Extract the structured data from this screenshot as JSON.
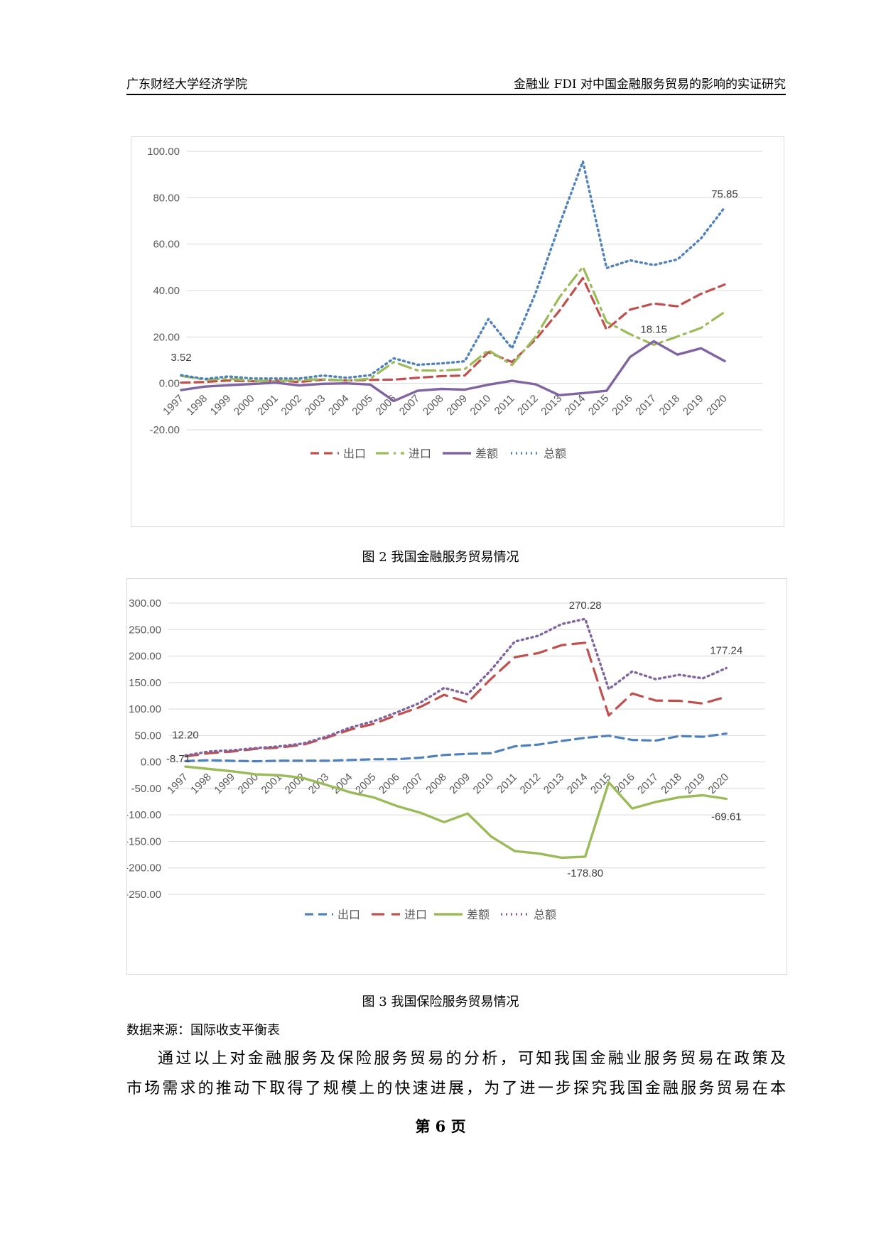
{
  "header": {
    "left": "广东财经大学经济学院",
    "right": "金融业 FDI 对中国金融服务贸易的影响的实证研究"
  },
  "figure2": {
    "caption": "图 2 我国金融服务贸易情况"
  },
  "figure3": {
    "caption": "图 3 我国保险服务贸易情况"
  },
  "source": "数据来源：国际收支平衡表",
  "paragraph": {
    "line1": "通过以上对金融服务及保险服务贸易的分析，可知我国金融业服务贸易在政策及",
    "line2": "市场需求的推动下取得了规模上的快速进展，为了进一步探究我国金融服务贸易在本"
  },
  "page_number": "第 6 页",
  "chart_data": [
    {
      "type": "line",
      "title": "",
      "categories": [
        "1997",
        "1998",
        "1999",
        "2000",
        "2001",
        "2002",
        "2003",
        "2004",
        "2005",
        "2006",
        "2007",
        "2008",
        "2009",
        "2010",
        "2011",
        "2012",
        "2013",
        "2014",
        "2015",
        "2016",
        "2017",
        "2018",
        "2019",
        "2020"
      ],
      "yticks": [
        "100.00",
        "80.00",
        "60.00",
        "40.00",
        "20.00",
        "0.00",
        "-20.00"
      ],
      "ylim": [
        -20,
        100
      ],
      "series": [
        {
          "name": "出口",
          "color": "#c0504d",
          "dash": "12,7",
          "width": 3.2,
          "values": [
            0.3,
            0.6,
            1.2,
            0.9,
            1.2,
            0.6,
            1.6,
            1.2,
            1.5,
            1.6,
            2.4,
            3.1,
            3.4,
            13.4,
            9.2,
            18.9,
            31.2,
            45.4,
            23.2,
            31.8,
            34.4,
            33.2,
            38.6,
            42.6
          ]
        },
        {
          "name": "进口",
          "color": "#9bbb59",
          "dash": "18,7,3,7",
          "width": 3.2,
          "values": [
            3.2,
            1.6,
            2.0,
            1.2,
            0.9,
            1.5,
            1.8,
            1.2,
            2.0,
            9.2,
            5.6,
            5.5,
            6.1,
            14.3,
            7.9,
            20.1,
            37.0,
            50.2,
            26.5,
            21.2,
            16.6,
            20.2,
            23.9,
            30.8
          ]
        },
        {
          "name": "差额",
          "color": "#8064a2",
          "dash": "",
          "width": 3.4,
          "values": [
            -2.9,
            -1.4,
            -0.8,
            -0.3,
            0.3,
            -0.9,
            -0.2,
            0.0,
            -0.5,
            -7.6,
            -3.2,
            -2.4,
            -2.7,
            -0.6,
            1.1,
            -0.4,
            -5.1,
            -4.2,
            -3.2,
            11.4,
            18.15,
            12.4,
            15.1,
            9.6
          ]
        },
        {
          "name": "总额",
          "color": "#4f81bd",
          "dash": "2,5",
          "width": 3.4,
          "values": [
            3.52,
            1.9,
            3.0,
            2.1,
            2.1,
            2.1,
            3.4,
            2.4,
            3.5,
            10.8,
            8.0,
            8.6,
            9.5,
            27.7,
            15.1,
            39.0,
            68.2,
            95.6,
            49.7,
            53.0,
            51.0,
            53.4,
            62.5,
            75.85
          ]
        }
      ],
      "labels": [
        {
          "series": 3,
          "index": 0,
          "text": "3.52"
        },
        {
          "series": 2,
          "index": 20,
          "text": "18.15"
        },
        {
          "series": 3,
          "index": 23,
          "text": "75.85"
        }
      ]
    },
    {
      "type": "line",
      "title": "",
      "categories": [
        "1997",
        "1998",
        "1999",
        "2000",
        "2001",
        "2002",
        "2003",
        "2004",
        "2005",
        "2006",
        "2007",
        "2008",
        "2009",
        "2010",
        "2011",
        "2012",
        "2013",
        "2014",
        "2015",
        "2016",
        "2017",
        "2018",
        "2019",
        "2020"
      ],
      "yticks": [
        "300.00",
        "250.00",
        "200.00",
        "150.00",
        "100.00",
        "50.00",
        "0.00",
        "-50.00",
        "-100.00",
        "-150.00",
        "-200.00",
        "-250.00"
      ],
      "ylim": [
        -250,
        300
      ],
      "series": [
        {
          "name": "出口",
          "color": "#4f81bd",
          "dash": "12,7",
          "width": 3.2,
          "values": [
            1.8,
            3.3,
            2.2,
            1.4,
            2.3,
            2.3,
            2.3,
            3.8,
            5.1,
            5.3,
            8.1,
            13.2,
            15.3,
            16.5,
            29.5,
            32.8,
            39.8,
            45.7,
            49.6,
            41.6,
            40.4,
            49.0,
            47.6,
            53.6
          ]
        },
        {
          "name": "进口",
          "color": "#c0504d",
          "dash": "18,10",
          "width": 3.2,
          "values": [
            10.5,
            16.5,
            19.8,
            24.8,
            27.3,
            32.5,
            45.7,
            61.0,
            72.0,
            88.6,
            104.1,
            126.8,
            112.6,
            157.3,
            197.8,
            205.5,
            220.6,
            225.1,
            87.9,
            129.4,
            115.9,
            115.6,
            110.4,
            123.2
          ]
        },
        {
          "name": "差额",
          "color": "#9bbb59",
          "dash": "",
          "width": 3.4,
          "values": [
            -8.71,
            -13.2,
            -17.6,
            -23.4,
            -25.0,
            -30.2,
            -43.4,
            -57.2,
            -66.9,
            -83.3,
            -96.0,
            -113.6,
            -97.3,
            -140.8,
            -168.3,
            -172.7,
            -180.8,
            -178.8,
            -38.3,
            -87.8,
            -75.5,
            -66.6,
            -62.8,
            -69.61
          ]
        },
        {
          "name": "总额",
          "color": "#8064a2",
          "dash": "2,5",
          "width": 3.4,
          "values": [
            12.2,
            19.8,
            22.0,
            26.2,
            29.6,
            34.8,
            48.0,
            64.8,
            77.1,
            93.9,
            112.2,
            140.0,
            127.9,
            173.8,
            227.3,
            238.3,
            260.4,
            270.28,
            137.5,
            171.0,
            156.3,
            164.6,
            158.0,
            177.24
          ]
        }
      ],
      "labels": [
        {
          "series": 3,
          "index": 0,
          "text": "12.20"
        },
        {
          "series": 2,
          "index": 0,
          "text": "-8.71"
        },
        {
          "series": 3,
          "index": 17,
          "text": "270.28"
        },
        {
          "series": 3,
          "index": 23,
          "text": "177.24"
        },
        {
          "series": 2,
          "index": 17,
          "text": "-178.80"
        },
        {
          "series": 2,
          "index": 23,
          "text": "-69.61"
        }
      ]
    }
  ]
}
